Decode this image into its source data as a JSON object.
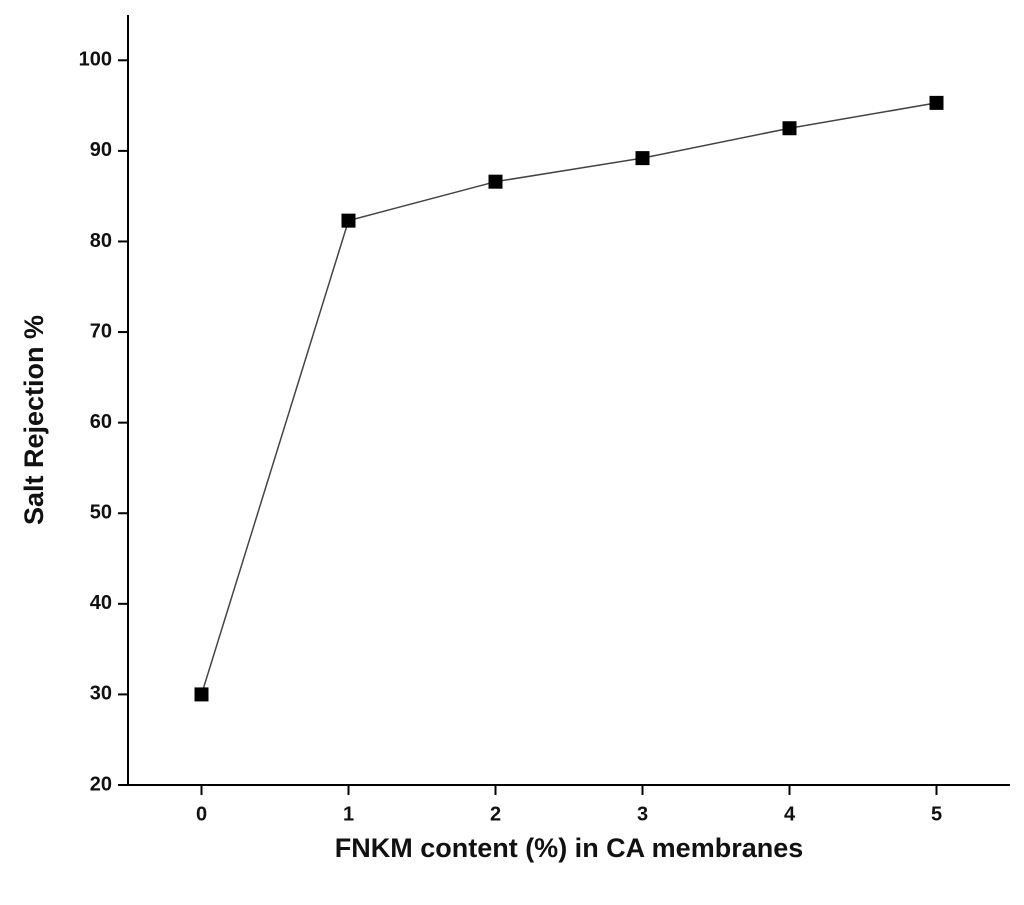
{
  "chart_data": {
    "type": "line",
    "x_label": "FNKM content (%) in CA membranes",
    "y_label": "Salt Rejection %",
    "x": [
      0,
      1,
      2,
      3,
      4,
      5
    ],
    "series": [
      {
        "color": "#000000",
        "values": [
          30,
          82.3,
          86.6,
          89.2,
          92.5,
          95.3
        ]
      }
    ],
    "xlim": [
      -0.5,
      5.5
    ],
    "xticks": [
      0,
      1,
      2,
      3,
      4,
      5
    ],
    "ylim": [
      20,
      105
    ],
    "yticks": [
      20,
      30,
      40,
      50,
      60,
      70,
      80,
      90,
      100
    ]
  }
}
